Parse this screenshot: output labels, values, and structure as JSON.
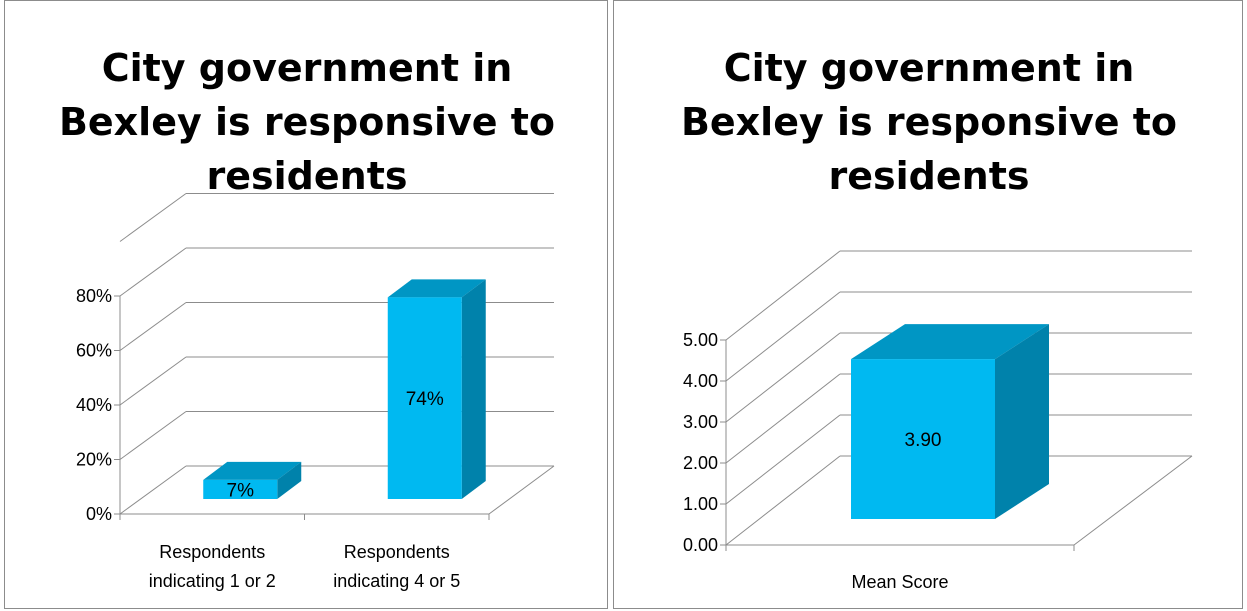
{
  "colors": {
    "bar_front": "#00b9f1",
    "bar_top": "#0096c4",
    "bar_side": "#0082ab",
    "grid": "#8c8c8c"
  },
  "chart_data": [
    {
      "type": "bar",
      "title": "City government in Bexley is responsive to residents",
      "categories": [
        "Respondents indicating 1 or 2",
        "Respondents indicating 4 or 5"
      ],
      "category_lines": [
        [
          "Respondents",
          "indicating 1 or 2"
        ],
        [
          "Respondents",
          "indicating 4 or 5"
        ]
      ],
      "values": [
        7,
        74
      ],
      "data_labels": [
        "7%",
        "74%"
      ],
      "yticks": [
        "0%",
        "20%",
        "40%",
        "60%",
        "80%"
      ],
      "ylim": [
        0,
        80
      ],
      "grid": true,
      "legend": "none"
    },
    {
      "type": "bar",
      "title": "City government in Bexley is responsive to residents",
      "categories": [
        "Mean Score"
      ],
      "category_lines": [
        [
          "Mean Score"
        ]
      ],
      "values": [
        3.9
      ],
      "data_labels": [
        "3.90"
      ],
      "yticks": [
        "0.00",
        "1.00",
        "2.00",
        "3.00",
        "4.00",
        "5.00"
      ],
      "ylim": [
        0,
        5
      ],
      "grid": true,
      "legend": "none"
    }
  ]
}
